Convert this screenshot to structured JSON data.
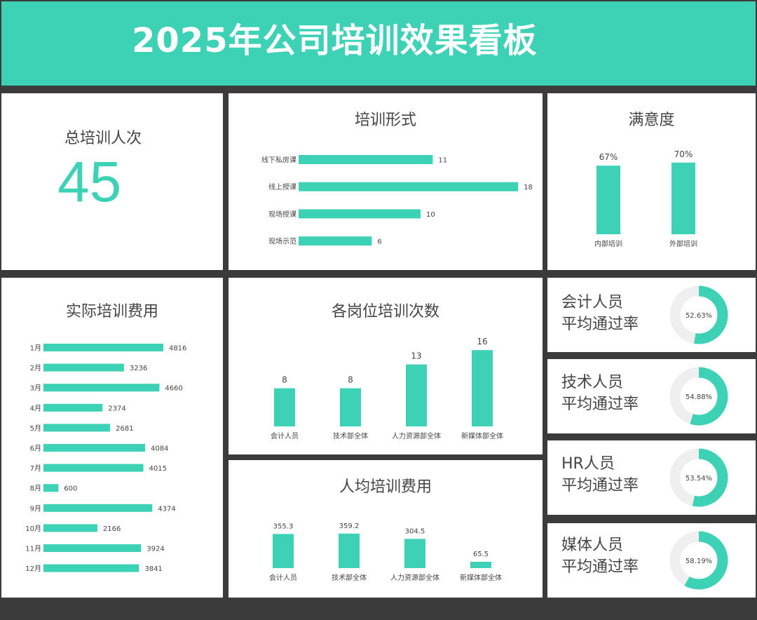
{
  "title": "2025年公司培训效果看板",
  "accent_color": "#3dd1b5",
  "total": {
    "label": "总培训人次",
    "value": "45"
  },
  "charts": {
    "format": {
      "type": "bar",
      "orientation": "horizontal",
      "title": "培训形式",
      "categories": [
        "线下私房课",
        "线上授课",
        "现场授课",
        "现场示范"
      ],
      "values": [
        11,
        18,
        10,
        6
      ]
    },
    "satisfaction": {
      "type": "bar",
      "title": "满意度",
      "categories": [
        "内部培训",
        "外部培训"
      ],
      "values": [
        67,
        70
      ],
      "value_labels": [
        "67%",
        "70%"
      ]
    },
    "monthly_cost": {
      "type": "bar",
      "orientation": "horizontal",
      "title": "实际培训费用",
      "categories": [
        "1月",
        "2月",
        "3月",
        "4月",
        "5月",
        "6月",
        "7月",
        "8月",
        "9月",
        "10月",
        "11月",
        "12月"
      ],
      "values": [
        4816,
        3236,
        4660,
        2374,
        2681,
        4084,
        4015,
        600,
        4374,
        2166,
        3924,
        3841
      ]
    },
    "position_count": {
      "type": "bar",
      "title": "各岗位培训次数",
      "categories": [
        "会计人员",
        "技术部全体",
        "人力资源部全体",
        "新媒体部全体"
      ],
      "values": [
        8,
        8,
        13,
        16
      ]
    },
    "per_capita_cost": {
      "type": "bar",
      "title": "人均培训费用",
      "categories": [
        "会计人员",
        "技术部全体",
        "人力资源部全体",
        "新媒体部全体"
      ],
      "values": [
        355.3,
        359.2,
        304.5,
        65.5
      ],
      "value_labels": [
        "355.3",
        "359.2",
        "304.5",
        "65.5"
      ]
    }
  },
  "pass_rates": [
    {
      "line1": "会计人员",
      "line2": "平均通过率",
      "value": 52.63,
      "label": "52.63%"
    },
    {
      "line1": "技术人员",
      "line2": "平均通过率",
      "value": 54.88,
      "label": "54.88%"
    },
    {
      "line1": "HR人员",
      "line2": "平均通过率",
      "value": 53.54,
      "label": "53.54%"
    },
    {
      "line1": "媒体人员",
      "line2": "平均通过率",
      "value": 58.19,
      "label": "58.19%"
    }
  ]
}
